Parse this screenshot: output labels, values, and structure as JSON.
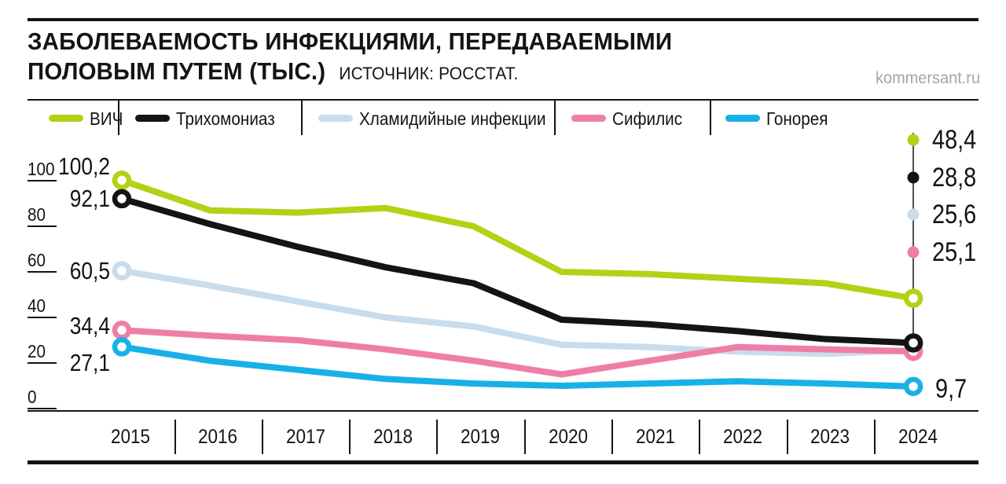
{
  "header": {
    "title_line1": "ЗАБОЛЕВАЕМОСТЬ ИНФЕКЦИЯМИ, ПЕРЕДАВАЕМЫМИ",
    "title_line2": "ПОЛОВЫМ ПУТЕМ (ТЫС.)",
    "source": "ИСТОЧНИК: РОССТАТ.",
    "watermark": "kommersant.ru"
  },
  "colors": {
    "ink": "#141414",
    "watermark_gray": "#a5a5a5",
    "connector_gray": "#3d3d3d",
    "hiv_green": "#b6d016",
    "trichomoniasis_black": "#141414",
    "chlamydia_lightblue": "#c9dcec",
    "syphilis_pink": "#ee7ea8",
    "gonorrhea_cyan": "#18b1e7"
  },
  "chart_data": {
    "type": "line",
    "title": "Заболеваемость инфекциями, передаваемыми половым путем (тыс.)",
    "xlabel": "",
    "ylabel": "",
    "ylim": [
      0,
      105
    ],
    "grid": false,
    "legend_position": "top",
    "categories": [
      "2015",
      "2016",
      "2017",
      "2018",
      "2019",
      "2020",
      "2021",
      "2022",
      "2023",
      "2024"
    ],
    "yticks": [
      {
        "label": "100",
        "value": 100
      },
      {
        "label": "80",
        "value": 80
      },
      {
        "label": "60",
        "value": 60
      },
      {
        "label": "40",
        "value": 40
      },
      {
        "label": "20",
        "value": 20
      },
      {
        "label": "0",
        "value": 0
      }
    ],
    "series": [
      {
        "key": "hiv",
        "name": "ВИЧ",
        "color": "#b6d016",
        "values": [
          100.2,
          87,
          86,
          88,
          80,
          60,
          59,
          57,
          55,
          48.4
        ],
        "start_label": "100,2",
        "end_label": "48,4",
        "end_callout": "stack"
      },
      {
        "key": "trichomoniasis",
        "name": "Трихомониаз",
        "color": "#141414",
        "values": [
          92.1,
          81,
          71,
          62,
          55,
          39,
          37,
          34,
          30.5,
          28.8
        ],
        "start_label": "92,1",
        "end_label": "28,8",
        "end_callout": "stack"
      },
      {
        "key": "chlamydia",
        "name": "Хламидийные инфекции",
        "color": "#c9dcec",
        "values": [
          60.5,
          54,
          47,
          40,
          36,
          28,
          27,
          25,
          24,
          25.6
        ],
        "start_label": "60,5",
        "end_label": "25,6",
        "end_callout": "stack"
      },
      {
        "key": "syphilis",
        "name": "Сифилис",
        "color": "#ee7ea8",
        "values": [
          34.4,
          32,
          30,
          26,
          21,
          15,
          21,
          27,
          26,
          25.1
        ],
        "start_label": "34,4",
        "end_label": "25,1",
        "end_callout": "stack"
      },
      {
        "key": "gonorrhea",
        "name": "Гонорея",
        "color": "#18b1e7",
        "values": [
          27.1,
          21,
          17,
          13,
          11,
          10,
          11,
          12,
          11,
          9.7
        ],
        "start_label": "27,1",
        "end_label": "9,7",
        "end_callout": "inline"
      }
    ]
  }
}
